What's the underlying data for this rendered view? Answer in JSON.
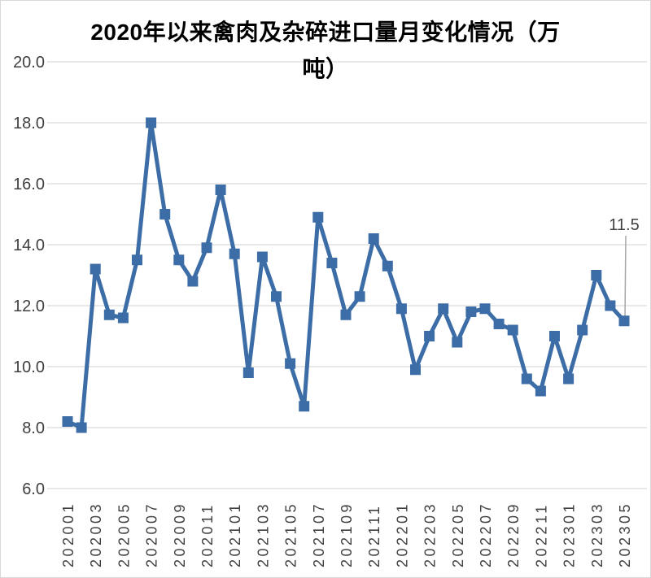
{
  "chart_data": {
    "type": "line",
    "title": "2020年以来禽肉及杂碎进口量月变化情况（万吨）",
    "title_lines": [
      "2020年以来禽肉及杂碎进口量月变化情况（万",
      "吨）"
    ],
    "xlabel": "",
    "ylabel": "",
    "x": [
      "202001",
      "202002",
      "202003",
      "202004",
      "202005",
      "202006",
      "202007",
      "202008",
      "202009",
      "202010",
      "202011",
      "202012",
      "202101",
      "202102",
      "202103",
      "202104",
      "202105",
      "202106",
      "202107",
      "202108",
      "202109",
      "202110",
      "202111",
      "202112",
      "202201",
      "202202",
      "202203",
      "202204",
      "202205",
      "202206",
      "202207",
      "202208",
      "202209",
      "202210",
      "202211",
      "202212",
      "202301",
      "202302",
      "202303",
      "202304",
      "202305"
    ],
    "values": [
      8.2,
      8.0,
      13.2,
      11.7,
      11.6,
      13.5,
      18.0,
      15.0,
      13.5,
      12.8,
      13.9,
      15.8,
      13.7,
      9.8,
      13.6,
      12.3,
      10.1,
      8.7,
      14.9,
      13.4,
      11.7,
      12.3,
      14.2,
      13.3,
      11.9,
      9.9,
      11.0,
      11.9,
      10.8,
      11.8,
      11.9,
      11.4,
      11.2,
      9.6,
      9.2,
      11.0,
      9.6,
      11.2,
      13.0,
      12.0,
      11.5
    ],
    "ylim": [
      6.0,
      20.0
    ],
    "ytick_step": 2.0,
    "ytick_labels": [
      "6.0",
      "8.0",
      "10.0",
      "12.0",
      "14.0",
      "16.0",
      "18.0",
      "20.0"
    ],
    "xtick_every": 2,
    "grid": true,
    "legend": "none",
    "marker": "square",
    "annotation": {
      "text": "11.5",
      "index": 40
    },
    "colors": {
      "line": "#3c6da6",
      "grid": "#d9d9d9",
      "axis_text": "#404040",
      "annotation_text": "#404040",
      "leader": "#a6a6a6",
      "background": "#ffffff"
    }
  }
}
